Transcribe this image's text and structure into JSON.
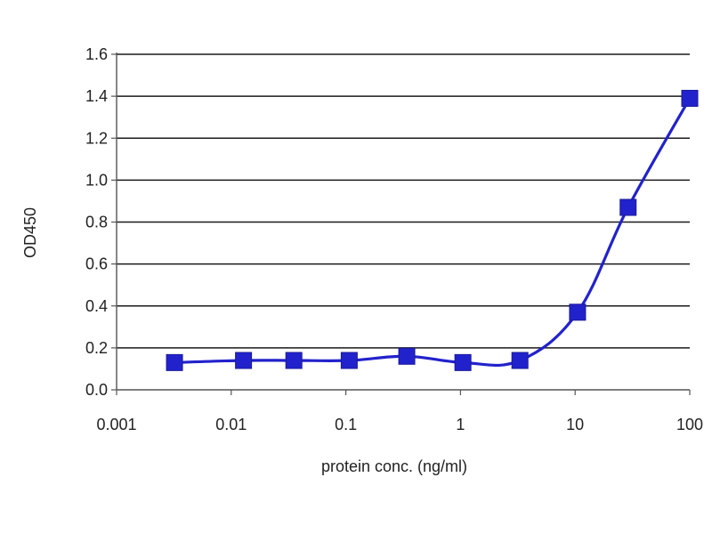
{
  "chart_data": {
    "type": "line",
    "xlabel": "protein conc. (ng/ml)",
    "ylabel": "OD450",
    "x_scale": "log",
    "xlim": [
      0.001,
      100
    ],
    "ylim": [
      0,
      1.6
    ],
    "x_ticks": [
      0.001,
      0.01,
      0.1,
      1,
      10,
      100
    ],
    "x_tick_labels": [
      "0.001",
      "0.01",
      "0.1",
      "1",
      "10",
      "100"
    ],
    "y_ticks": [
      0,
      0.2,
      0.4,
      0.6,
      0.8,
      1.0,
      1.2,
      1.4,
      1.6
    ],
    "y_tick_labels": [
      "0.0",
      "0.2",
      "0.4",
      "0.6",
      "0.8",
      "1.0",
      "1.2",
      "1.4",
      "1.6"
    ],
    "grid": "horizontal",
    "series": [
      {
        "color": "#2222cc",
        "marker": "square",
        "x": [
          0.0032,
          0.0128,
          0.0352,
          0.107,
          0.34,
          1.05,
          3.3,
          10.5,
          29,
          100
        ],
        "values": [
          0.13,
          0.14,
          0.14,
          0.14,
          0.16,
          0.13,
          0.14,
          0.37,
          0.87,
          1.39
        ]
      }
    ]
  }
}
